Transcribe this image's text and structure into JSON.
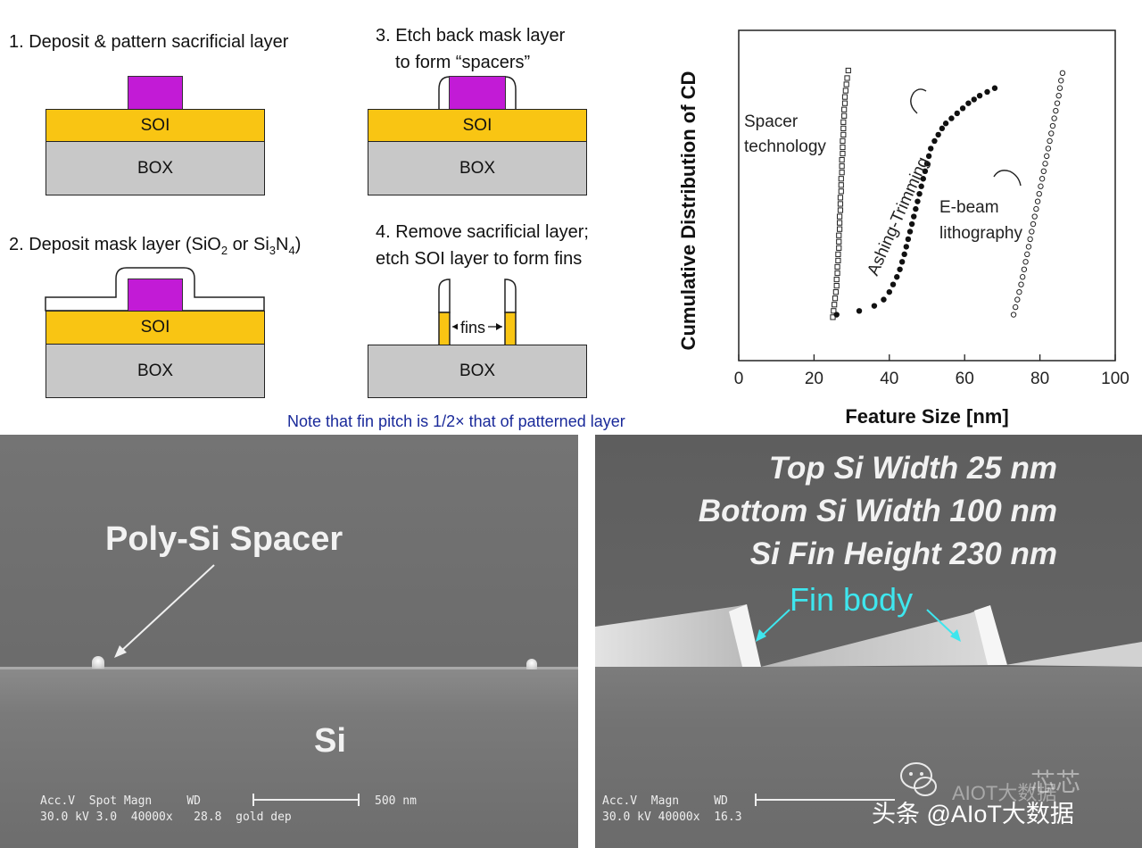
{
  "steps": {
    "s1": {
      "title": "1. Deposit & pattern sacrificial layer",
      "soi": "SOI",
      "box": "BOX"
    },
    "s2": {
      "title": "2. Deposit mask layer (SiO",
      "sub1": "2",
      "mid": " or Si",
      "sub2": "3",
      "n": "N",
      "sub3": "4",
      "end": ")",
      "soi": "SOI",
      "box": "BOX"
    },
    "s3": {
      "title1": "3. Etch back mask layer",
      "title2": "to form “spacers”",
      "soi": "SOI",
      "box": "BOX"
    },
    "s4": {
      "title1": "4. Remove sacrificial layer;",
      "title2": "etch SOI layer to form fins",
      "fins": "fins",
      "box": "BOX"
    }
  },
  "note": "Note that fin pitch is 1/2× that of patterned layer",
  "chart_data": {
    "type": "scatter",
    "title": "",
    "xlabel": "Feature Size [nm]",
    "ylabel": "Cumulative Distribution of CD",
    "xlim": [
      0,
      100
    ],
    "ylim": [
      0,
      100
    ],
    "xticks": [
      "0",
      "20",
      "40",
      "60",
      "80",
      "100"
    ],
    "series": [
      {
        "name": "Spacer technology",
        "marker": "open-square",
        "label_lines": [
          "Spacer",
          "technology"
        ],
        "x": [
          25,
          25.2,
          25.4,
          25.6,
          25.8,
          26,
          26,
          26.2,
          26.2,
          26.4,
          26.4,
          26.6,
          26.6,
          26.6,
          26.8,
          26.8,
          26.8,
          27,
          27,
          27,
          27.2,
          27.2,
          27.2,
          27.4,
          27.4,
          27.4,
          27.6,
          27.6,
          27.6,
          27.8,
          27.8,
          27.8,
          28,
          28,
          28.2,
          28.2,
          28.4,
          28.6,
          28.8,
          29.1
        ],
        "y": [
          2,
          4.5,
          7,
          9.5,
          12,
          14.5,
          17,
          19.5,
          22,
          24.5,
          27,
          29.5,
          32,
          34.5,
          37,
          39.5,
          42,
          44.5,
          47,
          49.5,
          52,
          54.5,
          57,
          59.5,
          62,
          64.5,
          67,
          69.5,
          72,
          74.5,
          77,
          79.5,
          82,
          84.5,
          87,
          89.5,
          92,
          94.5,
          97,
          100
        ]
      },
      {
        "name": "Ashing-Trimming",
        "marker": "filled-circle",
        "label_lines": [
          "Ashing-Trimming"
        ],
        "x": [
          26,
          32,
          36,
          38.5,
          40,
          41,
          42,
          42.8,
          43.4,
          44,
          44.5,
          45,
          45.5,
          46,
          46.5,
          47,
          47.5,
          48,
          48.5,
          49,
          49.5,
          50,
          50.5,
          51,
          52,
          53,
          54,
          55,
          56.5,
          58,
          59.5,
          61,
          62.5,
          64,
          66,
          68
        ],
        "y": [
          3,
          4.5,
          6.5,
          9,
          12,
          15,
          18,
          21,
          24,
          27,
          30,
          33,
          36,
          39,
          42,
          45,
          48,
          51,
          54,
          57,
          60,
          63,
          66,
          69,
          72,
          74.5,
          77,
          79,
          81,
          83,
          85,
          87,
          88.5,
          90,
          91.5,
          93
        ]
      },
      {
        "name": "E-beam lithography",
        "marker": "open-circle",
        "label_lines": [
          "E-beam",
          "lithography"
        ],
        "x": [
          73,
          73.5,
          74,
          74.5,
          75,
          75.4,
          75.8,
          76.2,
          76.6,
          77,
          77.4,
          77.8,
          78.2,
          78.6,
          79,
          79.4,
          79.8,
          80.2,
          80.6,
          81,
          81.4,
          81.8,
          82.2,
          82.6,
          83,
          83.4,
          83.8,
          84.2,
          84.6,
          85,
          85.3,
          85.6,
          86
        ],
        "y": [
          3,
          6,
          9,
          12,
          15,
          18,
          21,
          24,
          27,
          30,
          33,
          36,
          39,
          42,
          45,
          48,
          51,
          54,
          57,
          60,
          63,
          66,
          69,
          72,
          75,
          78,
          81,
          84,
          87,
          90,
          93,
          96,
          99
        ]
      }
    ]
  },
  "sem_left": {
    "label": "Poly-Si Spacer",
    "si": "Si",
    "info1": "Acc.V  Spot Magn     WD",
    "info2": "30.0 kV 3.0  40000x   28.8  gold dep",
    "scale": "500 nm"
  },
  "sem_right": {
    "line1": "Top Si Width 25 nm",
    "line2": "Bottom Si Width 100 nm",
    "line3": "Si Fin Height 230 nm",
    "fin": "Fin body",
    "info1": "Acc.V  Magn     WD",
    "info2": "30.0 kV 40000x  16.3"
  },
  "watermark": {
    "faint": "芯芯",
    "faint2": "AIOT大数据",
    "main": "头条 @AIoT大数据"
  },
  "colors": {
    "soi": "#f9c513",
    "sacrificial": "#c21bd6",
    "box": "#c8c8c8",
    "note": "#1a2a9a",
    "fin_label": "#3ee6ee"
  }
}
